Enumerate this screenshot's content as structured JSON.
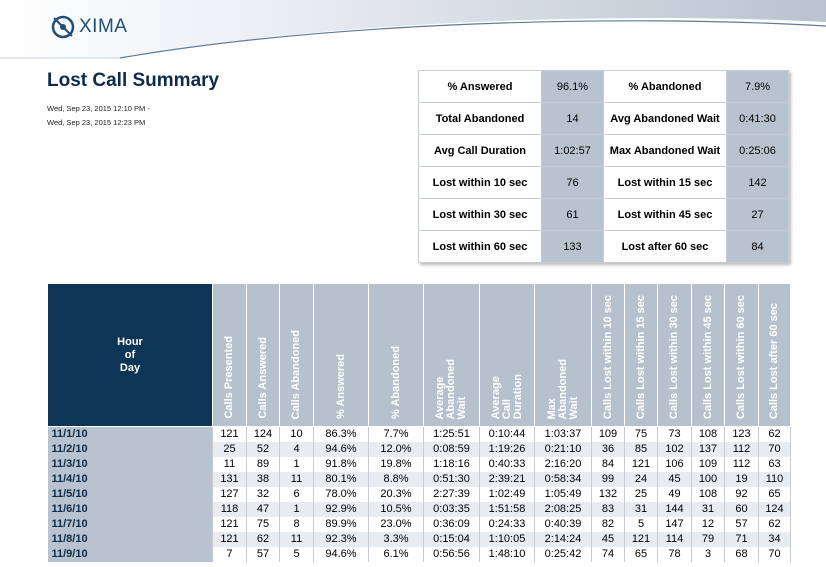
{
  "brand": {
    "name": "XIMA"
  },
  "report": {
    "title": "Lost Call Summary",
    "date_from": "Wed, Sep 23, 2015 12:10 PM -",
    "date_to": "Wed, Sep 23, 2015 12:23 PM"
  },
  "summary": [
    [
      "% Answered",
      "96.1%",
      "% Abandoned",
      "7.9%"
    ],
    [
      "Total Abandoned",
      "14",
      "Avg Abandoned Wait",
      "0:41:30"
    ],
    [
      "Avg Call Duration",
      "1:02:57",
      "Max Abandoned Wait",
      "0:25:06"
    ],
    [
      "Lost within 10 sec",
      "76",
      "Lost within 15 sec",
      "142"
    ],
    [
      "Lost within 30 sec",
      "61",
      "Lost within 45 sec",
      "27"
    ],
    [
      "Lost within 60 sec",
      "133",
      "Lost after 60 sec",
      "84"
    ]
  ],
  "table": {
    "hour_header": [
      "Hour",
      "of",
      "Day"
    ],
    "columns": [
      [
        "Calls Presented"
      ],
      [
        "Calls Answered"
      ],
      [
        "Calls Abandoned"
      ],
      [
        "% Answered"
      ],
      [
        "% Abandoned"
      ],
      [
        "Average",
        "Abandoned",
        "Wait"
      ],
      [
        "Average",
        "Call",
        "Duration"
      ],
      [
        "Max",
        "Abandoned",
        "Wait"
      ],
      [
        "Calls Lost within 10 sec"
      ],
      [
        "Calls Lost within 15 sec"
      ],
      [
        "Calls Lost within 30 sec"
      ],
      [
        "Calls Lost within 45 sec"
      ],
      [
        "Calls Lost within 60 sec"
      ],
      [
        "Calls Lost after 60 sec"
      ]
    ],
    "rows": [
      [
        "11/1/10",
        "121",
        "124",
        "10",
        "86.3%",
        "7.7%",
        "1:25:51",
        "0:10:44",
        "1:03:37",
        "109",
        "75",
        "73",
        "108",
        "123",
        "62"
      ],
      [
        "11/2/10",
        "25",
        "52",
        "4",
        "94.6%",
        "12.0%",
        "0:08:59",
        "1:19:26",
        "0:21:10",
        "36",
        "85",
        "102",
        "137",
        "112",
        "70"
      ],
      [
        "11/3/10",
        "11",
        "89",
        "1",
        "91.8%",
        "19.8%",
        "1:18:16",
        "0:40:33",
        "2:16:20",
        "84",
        "121",
        "106",
        "109",
        "112",
        "63"
      ],
      [
        "11/4/10",
        "131",
        "38",
        "11",
        "80.1%",
        "8.8%",
        "0:51:30",
        "2:39:21",
        "0:58:34",
        "99",
        "24",
        "45",
        "100",
        "19",
        "110"
      ],
      [
        "11/5/10",
        "127",
        "32",
        "6",
        "78.0%",
        "20.3%",
        "2:27:39",
        "1:02:49",
        "1:05:49",
        "132",
        "25",
        "49",
        "108",
        "92",
        "65"
      ],
      [
        "11/6/10",
        "118",
        "47",
        "1",
        "92.9%",
        "10.5%",
        "0:03:35",
        "1:51:58",
        "2:08:25",
        "83",
        "31",
        "144",
        "31",
        "60",
        "124"
      ],
      [
        "11/7/10",
        "121",
        "75",
        "8",
        "89.9%",
        "23.0%",
        "0:36:09",
        "0:24:33",
        "0:40:39",
        "82",
        "5",
        "147",
        "12",
        "57",
        "62"
      ],
      [
        "11/8/10",
        "121",
        "62",
        "11",
        "92.3%",
        "3.3%",
        "0:15:04",
        "1:10:05",
        "2:14:24",
        "45",
        "121",
        "114",
        "79",
        "71",
        "34"
      ],
      [
        "11/9/10",
        "7",
        "57",
        "5",
        "94.6%",
        "6.1%",
        "0:56:56",
        "1:48:10",
        "0:25:42",
        "74",
        "65",
        "78",
        "3",
        "68",
        "70"
      ]
    ]
  }
}
